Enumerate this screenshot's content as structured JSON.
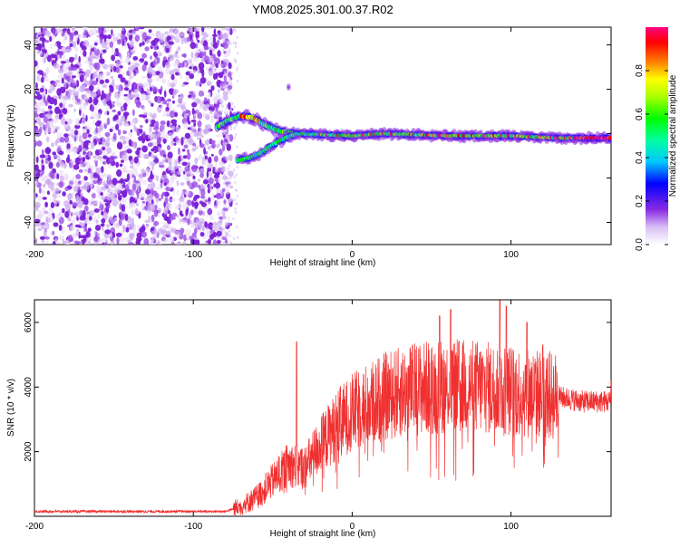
{
  "title": "YM08.2025.301.00.37.R02",
  "chart_data": [
    {
      "type": "heatmap",
      "xlabel": "Height of straight line (km)",
      "ylabel": "Frequency (Hz)",
      "xlim": [
        -200,
        163
      ],
      "ylim": [
        -50,
        48
      ],
      "xticks": [
        -200,
        -100,
        0,
        100
      ],
      "yticks": [
        -40,
        -20,
        0,
        20,
        40
      ],
      "noise_region_x": [
        -200,
        -80
      ],
      "arc_upper": [
        [
          -85,
          3
        ],
        [
          -78,
          6
        ],
        [
          -70,
          8
        ],
        [
          -62,
          7
        ],
        [
          -55,
          4
        ],
        [
          -45,
          1
        ],
        [
          -35,
          0
        ]
      ],
      "arc_lower": [
        [
          -72,
          -12
        ],
        [
          -65,
          -11
        ],
        [
          -58,
          -9
        ],
        [
          -50,
          -5
        ],
        [
          -42,
          -2
        ],
        [
          -35,
          0
        ]
      ],
      "ridge": [
        [
          -35,
          0
        ],
        [
          0,
          -1
        ],
        [
          20,
          0
        ],
        [
          60,
          -1
        ],
        [
          100,
          -1
        ],
        [
          130,
          -2
        ],
        [
          163,
          -2
        ]
      ],
      "colorbar": {
        "label": "Normalized spectral amplitude",
        "ticks": [
          0.0,
          0.2,
          0.4,
          0.6,
          0.8
        ],
        "range": [
          0,
          1
        ]
      }
    },
    {
      "type": "line",
      "xlabel": "Height of straight line (km)",
      "ylabel": "SNR (10 * v/v)",
      "xlim": [
        -200,
        163
      ],
      "ylim": [
        0,
        6700
      ],
      "xticks": [
        -200,
        -100,
        0,
        100
      ],
      "yticks": [
        2000,
        4000,
        6000
      ],
      "series": [
        {
          "name": "SNR",
          "color": "#f03030",
          "envelope": [
            [
              -200,
              150
            ],
            [
              -80,
              150
            ],
            [
              -70,
              300
            ],
            [
              -60,
              600
            ],
            [
              -50,
              1100
            ],
            [
              -40,
              1600
            ],
            [
              -30,
              1500
            ],
            [
              -20,
              2200
            ],
            [
              -10,
              2800
            ],
            [
              0,
              3200
            ],
            [
              20,
              3700
            ],
            [
              40,
              3950
            ],
            [
              60,
              4050
            ],
            [
              80,
              4000
            ],
            [
              100,
              3900
            ],
            [
              115,
              3800
            ],
            [
              130,
              3700
            ],
            [
              145,
              3550
            ],
            [
              163,
              3550
            ]
          ],
          "peaks": [
            [
              -35,
              5400
            ],
            [
              55,
              6200
            ],
            [
              62,
              6400
            ],
            [
              93,
              6700
            ],
            [
              97,
              6500
            ],
            [
              110,
              6000
            ],
            [
              120,
              5300
            ],
            [
              163,
              4200
            ]
          ]
        }
      ]
    }
  ]
}
